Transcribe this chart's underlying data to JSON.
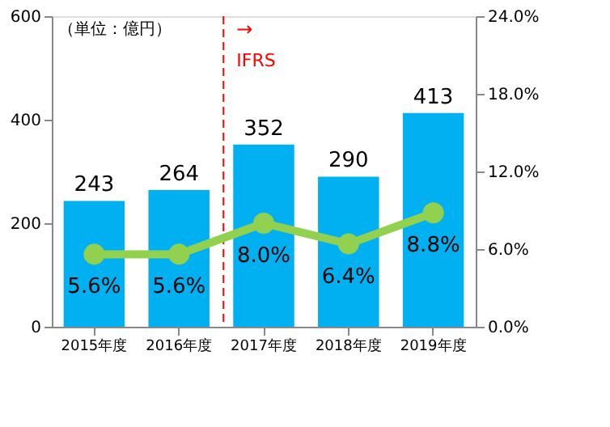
{
  "chart_data": {
    "type": "bar",
    "categories": [
      "2015年度",
      "2016年度",
      "2017年度",
      "2018年度",
      "2019年度"
    ],
    "series": [
      {
        "color": "#00b0f0",
        "values": [
          243,
          264,
          352,
          290,
          413
        ],
        "value_labels": [
          "243",
          "264",
          "352",
          "290",
          "413"
        ]
      },
      {
        "type": "line",
        "axis": "y2",
        "color": "#92d050",
        "marker": "circle",
        "values": [
          5.6,
          5.6,
          8.0,
          6.4,
          8.8
        ],
        "value_labels": [
          "5.6%",
          "5.6%",
          "8.0%",
          "6.4%",
          "8.8%"
        ]
      }
    ],
    "ylim": [
      0,
      600
    ],
    "yticks": [
      0,
      200,
      400,
      600
    ],
    "y2lim": [
      0,
      24
    ],
    "y2ticks": [
      {
        "value": 0,
        "label": "0.0%"
      },
      {
        "value": 6,
        "label": "6.0%"
      },
      {
        "value": 12,
        "label": "12.0%"
      },
      {
        "value": 18,
        "label": "18.0%"
      },
      {
        "value": 24,
        "label": "24.0%"
      }
    ],
    "ref_lines": [
      {
        "axis": "x",
        "value": "2017年度",
        "label": "IFRS",
        "color": "#ff0000",
        "line_style": "dashed"
      }
    ],
    "annotations": [
      "（単位：億円）",
      "→"
    ],
    "grid": false
  }
}
